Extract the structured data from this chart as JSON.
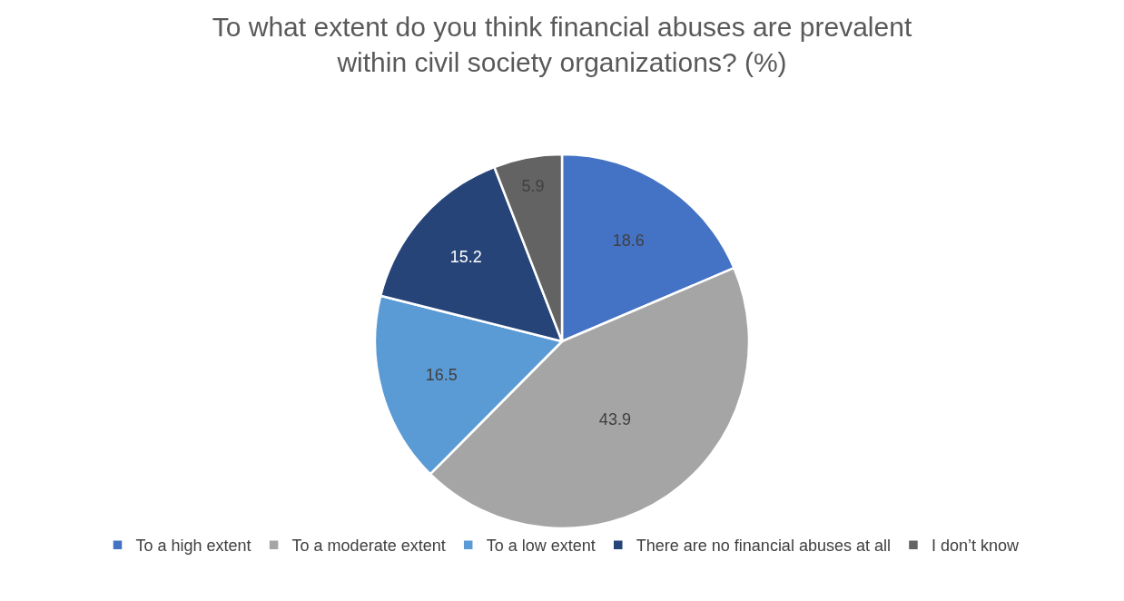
{
  "chart_data": {
    "type": "pie",
    "title": "To what extent do you think financial abuses are prevalent within civil society organizations? (%)",
    "categories": [
      "To a high extent",
      "To a moderate extent",
      "To a low extent",
      "There are no financial abuses at all",
      "I don’t know"
    ],
    "values": [
      18.6,
      43.9,
      16.5,
      15.2,
      5.9
    ],
    "colors": [
      "#4472c4",
      "#a5a5a5",
      "#5b9bd5",
      "#264478",
      "#636363"
    ],
    "data_labels": true,
    "legend": "bottom"
  }
}
